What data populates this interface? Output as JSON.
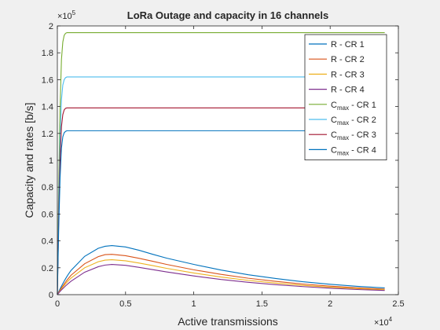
{
  "chart_data": {
    "type": "line",
    "title": "LoRa Outage and capacity in 16 channels",
    "xlabel": "Active transmissions",
    "ylabel": "Capacity and rates [b/s]",
    "x_exponent_label": "×10",
    "x_exponent": "4",
    "y_exponent_label": "×10",
    "y_exponent": "5",
    "xlim": [
      0,
      25000
    ],
    "ylim": [
      0,
      200000
    ],
    "x_ticks": [
      0,
      5000,
      10000,
      15000,
      20000,
      25000
    ],
    "x_tick_labels": [
      "0",
      "0.5",
      "1",
      "1.5",
      "2",
      "2.5"
    ],
    "y_ticks": [
      0,
      20000,
      40000,
      60000,
      80000,
      100000,
      120000,
      140000,
      160000,
      180000,
      200000
    ],
    "y_tick_labels": [
      "0",
      "0.2",
      "0.4",
      "0.6",
      "0.8",
      "1",
      "1.2",
      "1.4",
      "1.6",
      "1.8",
      "2"
    ],
    "grid": false,
    "legend_position": "top-right",
    "x": [
      0,
      100,
      200,
      300,
      400,
      500,
      600,
      700,
      800,
      1000,
      2000,
      3000,
      3500,
      4000,
      5000,
      6000,
      7000,
      8000,
      10000,
      12000,
      14000,
      16000,
      18000,
      20000,
      22000,
      24000
    ],
    "series": [
      {
        "name": "R - CR 1",
        "color": "#0072BD",
        "values": [
          0,
          2200,
          4300,
          6300,
          8200,
          10000,
          11800,
          13500,
          15100,
          18000,
          28500,
          34500,
          36000,
          36500,
          35500,
          33000,
          30000,
          27200,
          22500,
          18300,
          14800,
          12000,
          9600,
          7700,
          6200,
          5000
        ]
      },
      {
        "name": "R - CR 2",
        "color": "#D95319",
        "values": [
          0,
          1700,
          3400,
          5000,
          6500,
          7900,
          9300,
          10700,
          12000,
          14400,
          23000,
          28300,
          29800,
          30000,
          29000,
          27000,
          24800,
          22500,
          18500,
          15100,
          12200,
          9900,
          7900,
          6300,
          5100,
          4100
        ]
      },
      {
        "name": "R - CR 3",
        "color": "#EDB120",
        "values": [
          0,
          1500,
          2900,
          4300,
          5600,
          6800,
          8000,
          9200,
          10300,
          12300,
          20000,
          24500,
          25700,
          26000,
          25200,
          23500,
          21600,
          19600,
          16100,
          13100,
          10600,
          8600,
          6900,
          5500,
          4400,
          3600
        ]
      },
      {
        "name": "R - CR 4",
        "color": "#7E2F8E",
        "values": [
          0,
          1200,
          2400,
          3500,
          4500,
          5500,
          6500,
          7400,
          8300,
          10000,
          16700,
          20800,
          22000,
          22500,
          21800,
          20300,
          18600,
          16900,
          13900,
          11300,
          9200,
          7400,
          6000,
          4800,
          3800,
          3100
        ]
      },
      {
        "name": "C max - CR 1",
        "legend_base": "C",
        "legend_sub": "max",
        "legend_tail": " - CR 1",
        "color": "#77AC30",
        "values": [
          0,
          80000,
          140000,
          175000,
          188000,
          193000,
          194500,
          195000,
          195000,
          195000,
          195000,
          195000,
          195000,
          195000,
          195000,
          195000,
          195000,
          195000,
          195000,
          195000,
          195000,
          195000,
          195000,
          195000,
          195000,
          195000
        ]
      },
      {
        "name": "C max - CR 2",
        "legend_base": "C",
        "legend_sub": "max",
        "legend_tail": " - CR 2",
        "color": "#4DBEEE",
        "values": [
          0,
          66000,
          116000,
          145000,
          156000,
          160000,
          161500,
          162000,
          162000,
          162000,
          162000,
          162000,
          162000,
          162000,
          162000,
          162000,
          162000,
          162000,
          162000,
          162000,
          162000,
          162000,
          162000,
          162000,
          162000,
          162000
        ]
      },
      {
        "name": "C max - CR 3",
        "legend_base": "C",
        "legend_sub": "max",
        "legend_tail": " - CR 3",
        "color": "#A2142F",
        "values": [
          0,
          57000,
          100000,
          125000,
          134000,
          137500,
          138700,
          139000,
          139000,
          139000,
          139000,
          139000,
          139000,
          139000,
          139000,
          139000,
          139000,
          139000,
          139000,
          139000,
          139000,
          139000,
          139000,
          139000,
          139000,
          139000
        ]
      },
      {
        "name": "C max - CR 4",
        "legend_base": "C",
        "legend_sub": "max",
        "legend_tail": " - CR 4",
        "color": "#0072BD",
        "values": [
          0,
          50000,
          87000,
          109000,
          117500,
          120500,
          121500,
          122000,
          122000,
          122000,
          122000,
          122000,
          122000,
          122000,
          122000,
          122000,
          122000,
          122000,
          122000,
          122000,
          122000,
          122000,
          122000,
          122000,
          122000,
          122000
        ]
      }
    ]
  }
}
